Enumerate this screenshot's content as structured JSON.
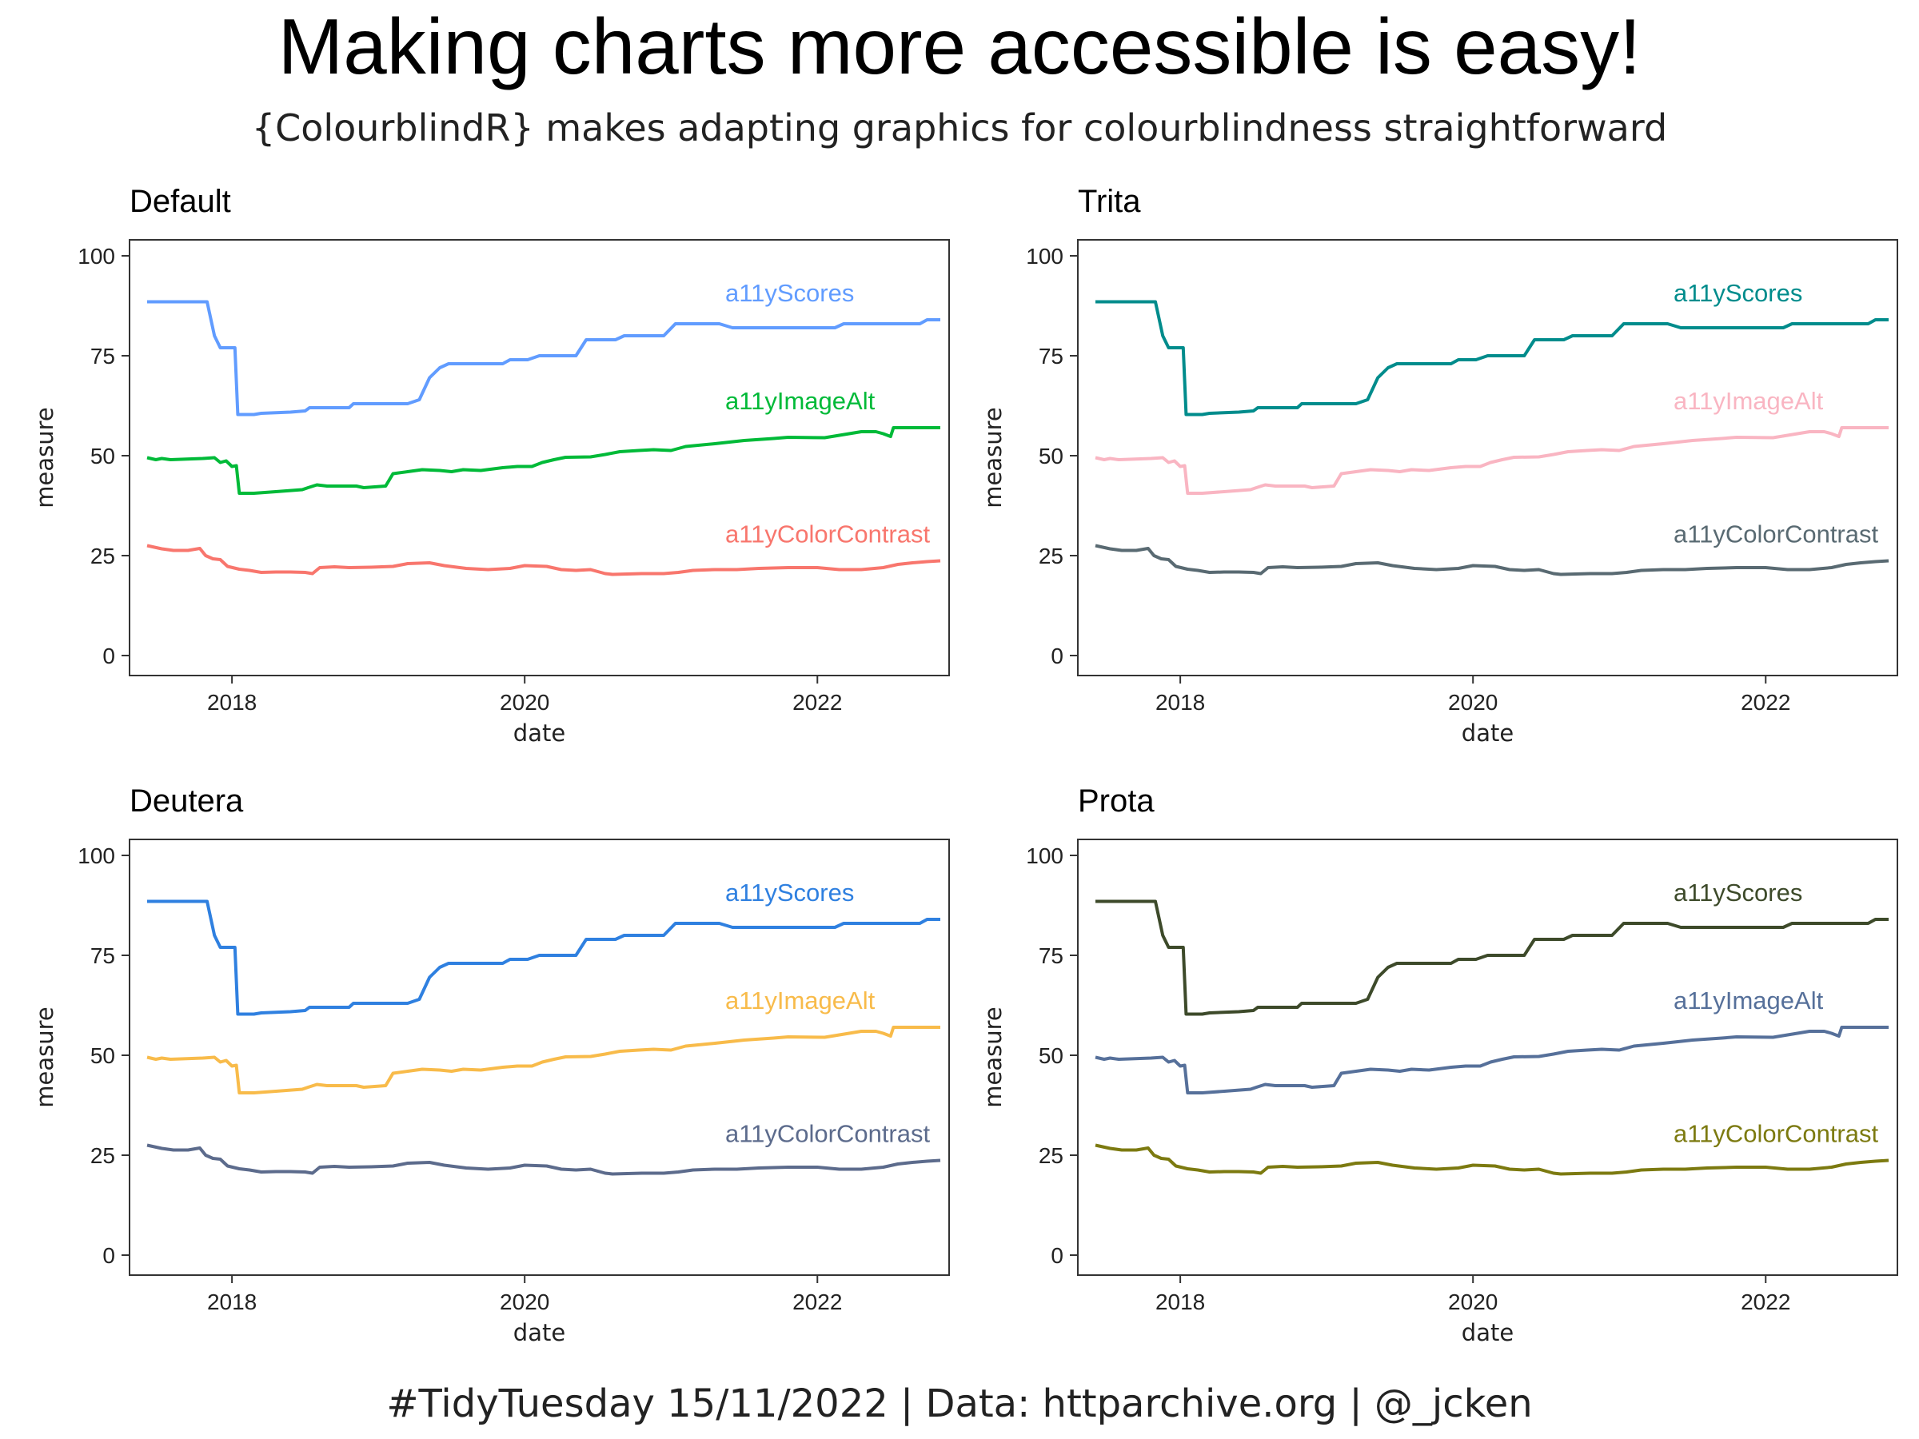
{
  "title": "Making charts more accessible is easy!",
  "subtitle": "{ColourblindR} makes adapting graphics for colourblindness straightforward",
  "caption": "#TidyTuesday 15/11/2022 | Data: httparchive.org | @_jcken",
  "chart_data": {
    "type": "line",
    "xlabel": "date",
    "ylabel": "measure",
    "xlim": [
      2017.3,
      2022.9
    ],
    "ylim": [
      -5,
      104
    ],
    "x_ticks": [
      2018,
      2020,
      2022
    ],
    "y_ticks": [
      0,
      25,
      50,
      75,
      100
    ],
    "grid": false,
    "legend": "direct labels at right end of each line",
    "series_data": [
      {
        "name": "a11yScores",
        "points": [
          [
            2017.42,
            88.5
          ],
          [
            2017.83,
            88.5
          ],
          [
            2017.88,
            80
          ],
          [
            2017.92,
            77
          ],
          [
            2018.02,
            77
          ],
          [
            2018.04,
            60.3
          ],
          [
            2018.15,
            60.3
          ],
          [
            2018.2,
            60.6
          ],
          [
            2018.4,
            60.9
          ],
          [
            2018.5,
            61.2
          ],
          [
            2018.53,
            62
          ],
          [
            2018.8,
            62
          ],
          [
            2018.83,
            63
          ],
          [
            2019.2,
            63
          ],
          [
            2019.28,
            64
          ],
          [
            2019.35,
            69.5
          ],
          [
            2019.42,
            72
          ],
          [
            2019.48,
            73
          ],
          [
            2019.85,
            73
          ],
          [
            2019.9,
            74
          ],
          [
            2020.02,
            74
          ],
          [
            2020.1,
            75
          ],
          [
            2020.35,
            75
          ],
          [
            2020.42,
            79
          ],
          [
            2020.62,
            79
          ],
          [
            2020.68,
            80
          ],
          [
            2020.95,
            80
          ],
          [
            2021.03,
            83
          ],
          [
            2021.33,
            83
          ],
          [
            2021.42,
            82
          ],
          [
            2022.12,
            82
          ],
          [
            2022.18,
            83
          ],
          [
            2022.7,
            83
          ],
          [
            2022.75,
            84
          ],
          [
            2022.84,
            84
          ]
        ]
      },
      {
        "name": "a11yImageAlt",
        "points": [
          [
            2017.42,
            49.5
          ],
          [
            2017.48,
            49
          ],
          [
            2017.52,
            49.3
          ],
          [
            2017.58,
            49
          ],
          [
            2017.8,
            49.3
          ],
          [
            2017.88,
            49.5
          ],
          [
            2017.92,
            48.3
          ],
          [
            2017.96,
            48.7
          ],
          [
            2018.0,
            47.3
          ],
          [
            2018.03,
            47.5
          ],
          [
            2018.05,
            40.6
          ],
          [
            2018.15,
            40.6
          ],
          [
            2018.3,
            41
          ],
          [
            2018.48,
            41.5
          ],
          [
            2018.52,
            42
          ],
          [
            2018.58,
            42.7
          ],
          [
            2018.65,
            42.4
          ],
          [
            2018.85,
            42.4
          ],
          [
            2018.9,
            42
          ],
          [
            2019.05,
            42.4
          ],
          [
            2019.1,
            45.5
          ],
          [
            2019.2,
            46
          ],
          [
            2019.3,
            46.5
          ],
          [
            2019.42,
            46.3
          ],
          [
            2019.5,
            46
          ],
          [
            2019.58,
            46.5
          ],
          [
            2019.7,
            46.3
          ],
          [
            2019.85,
            47
          ],
          [
            2019.95,
            47.3
          ],
          [
            2020.05,
            47.3
          ],
          [
            2020.12,
            48.3
          ],
          [
            2020.2,
            49
          ],
          [
            2020.28,
            49.6
          ],
          [
            2020.45,
            49.7
          ],
          [
            2020.55,
            50.3
          ],
          [
            2020.65,
            51
          ],
          [
            2020.78,
            51.3
          ],
          [
            2020.88,
            51.5
          ],
          [
            2021.0,
            51.3
          ],
          [
            2021.1,
            52.3
          ],
          [
            2021.3,
            53
          ],
          [
            2021.5,
            53.8
          ],
          [
            2021.7,
            54.3
          ],
          [
            2021.8,
            54.6
          ],
          [
            2022.05,
            54.5
          ],
          [
            2022.2,
            55.4
          ],
          [
            2022.3,
            56
          ],
          [
            2022.4,
            56
          ],
          [
            2022.45,
            55.5
          ],
          [
            2022.5,
            54.8
          ],
          [
            2022.52,
            57
          ],
          [
            2022.84,
            57
          ]
        ]
      },
      {
        "name": "a11yColorContrast",
        "points": [
          [
            2017.42,
            27.5
          ],
          [
            2017.52,
            26.7
          ],
          [
            2017.6,
            26.3
          ],
          [
            2017.7,
            26.3
          ],
          [
            2017.78,
            26.8
          ],
          [
            2017.82,
            25
          ],
          [
            2017.87,
            24.2
          ],
          [
            2017.92,
            24
          ],
          [
            2017.97,
            22.3
          ],
          [
            2018.05,
            21.6
          ],
          [
            2018.12,
            21.3
          ],
          [
            2018.2,
            20.8
          ],
          [
            2018.3,
            20.9
          ],
          [
            2018.4,
            20.9
          ],
          [
            2018.5,
            20.8
          ],
          [
            2018.55,
            20.5
          ],
          [
            2018.6,
            22
          ],
          [
            2018.7,
            22.2
          ],
          [
            2018.8,
            22
          ],
          [
            2018.95,
            22.1
          ],
          [
            2019.1,
            22.3
          ],
          [
            2019.2,
            23
          ],
          [
            2019.35,
            23.2
          ],
          [
            2019.45,
            22.5
          ],
          [
            2019.6,
            21.8
          ],
          [
            2019.75,
            21.5
          ],
          [
            2019.9,
            21.8
          ],
          [
            2020.0,
            22.5
          ],
          [
            2020.15,
            22.3
          ],
          [
            2020.25,
            21.5
          ],
          [
            2020.35,
            21.3
          ],
          [
            2020.45,
            21.5
          ],
          [
            2020.55,
            20.5
          ],
          [
            2020.6,
            20.3
          ],
          [
            2020.8,
            20.5
          ],
          [
            2020.95,
            20.5
          ],
          [
            2021.05,
            20.8
          ],
          [
            2021.15,
            21.3
          ],
          [
            2021.3,
            21.5
          ],
          [
            2021.45,
            21.5
          ],
          [
            2021.6,
            21.8
          ],
          [
            2021.8,
            22
          ],
          [
            2022.0,
            22
          ],
          [
            2022.15,
            21.5
          ],
          [
            2022.3,
            21.5
          ],
          [
            2022.45,
            22
          ],
          [
            2022.55,
            22.8
          ],
          [
            2022.65,
            23.2
          ],
          [
            2022.75,
            23.5
          ],
          [
            2022.84,
            23.7
          ]
        ]
      }
    ],
    "panels": [
      {
        "title": "Default",
        "series": [
          {
            "name": "a11yScores",
            "color": "#619cff",
            "label": "a11yScores"
          },
          {
            "name": "a11yImageAlt",
            "color": "#00ba38",
            "label": "a11yImageAlt"
          },
          {
            "name": "a11yColorContrast",
            "color": "#f8766d",
            "label": "a11yColorContrast"
          }
        ]
      },
      {
        "title": "Trita",
        "series": [
          {
            "name": "a11yScores",
            "color": "#008c8c",
            "label": "a11yScores"
          },
          {
            "name": "a11yImageAlt",
            "color": "#f9b5c2",
            "label": "a11yImageAlt"
          },
          {
            "name": "a11yColorContrast",
            "color": "#596a72",
            "label": "a11yColorContrast"
          }
        ]
      },
      {
        "title": "Deutera",
        "series": [
          {
            "name": "a11yScores",
            "color": "#2f80e0",
            "label": "a11yScores"
          },
          {
            "name": "a11yImageAlt",
            "color": "#f8bb4a",
            "label": "a11yImageAlt"
          },
          {
            "name": "a11yColorContrast",
            "color": "#5c6b8c",
            "label": "a11yColorContrast"
          }
        ]
      },
      {
        "title": "Prota",
        "series": [
          {
            "name": "a11yScores",
            "color": "#3d4a2a",
            "label": "a11yScores"
          },
          {
            "name": "a11yImageAlt",
            "color": "#56709a",
            "label": "a11yImageAlt"
          },
          {
            "name": "a11yColorContrast",
            "color": "#7c7a10",
            "label": "a11yColorContrast"
          }
        ]
      }
    ]
  }
}
